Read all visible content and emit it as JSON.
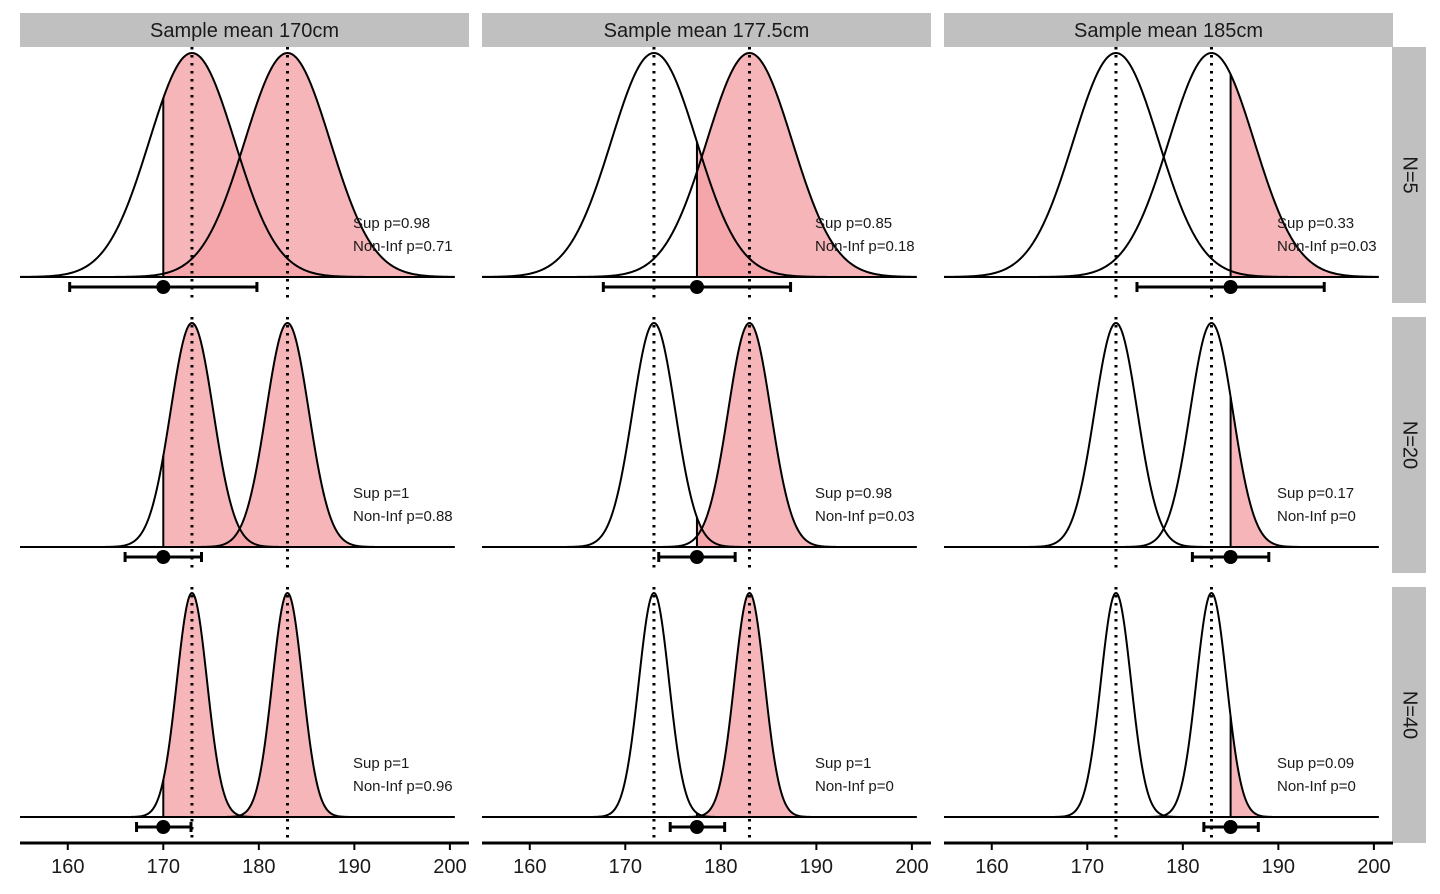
{
  "chart_data": {
    "type": "area",
    "x_axis": {
      "range": [
        155,
        202
      ],
      "ticks": [
        160,
        170,
        180,
        190,
        200
      ],
      "tick_labels": [
        "160",
        "170",
        "180",
        "190",
        "200"
      ]
    },
    "reference_lines": [
      173,
      183
    ],
    "null_means": [
      173,
      183
    ],
    "sd": 10,
    "columns": [
      {
        "label": "Sample mean 170cm",
        "sample_mean": 170
      },
      {
        "label": "Sample mean 177.5cm",
        "sample_mean": 177.5
      },
      {
        "label": "Sample mean 185cm",
        "sample_mean": 185
      }
    ],
    "rows": [
      {
        "label": "N=5",
        "n": 5
      },
      {
        "label": "N=20",
        "n": 20
      },
      {
        "label": "N=40",
        "n": 40
      }
    ],
    "panels": [
      {
        "row": 0,
        "col": 0,
        "ci": [
          160.2,
          179.8
        ],
        "sup_text": "Sup p=0.98",
        "noninf_text": "Non-Inf p=0.71"
      },
      {
        "row": 0,
        "col": 1,
        "ci": [
          167.7,
          187.3
        ],
        "sup_text": "Sup p=0.85",
        "noninf_text": "Non-Inf p=0.18"
      },
      {
        "row": 0,
        "col": 2,
        "ci": [
          175.2,
          194.8
        ],
        "sup_text": "Sup p=0.33",
        "noninf_text": "Non-Inf p=0.03"
      },
      {
        "row": 1,
        "col": 0,
        "ci": [
          166.0,
          174.0
        ],
        "sup_text": "Sup p=1",
        "noninf_text": "Non-Inf p=0.88"
      },
      {
        "row": 1,
        "col": 1,
        "ci": [
          173.5,
          181.5
        ],
        "sup_text": "Sup p=0.98",
        "noninf_text": "Non-Inf p=0.03"
      },
      {
        "row": 1,
        "col": 2,
        "ci": [
          181.0,
          189.0
        ],
        "sup_text": "Sup p=0.17",
        "noninf_text": "Non-Inf p=0"
      },
      {
        "row": 2,
        "col": 0,
        "ci": [
          167.2,
          172.9
        ],
        "sup_text": "Sup p=1",
        "noninf_text": "Non-Inf p=0.96"
      },
      {
        "row": 2,
        "col": 1,
        "ci": [
          174.7,
          180.4
        ],
        "sup_text": "Sup p=1",
        "noninf_text": "Non-Inf p=0"
      },
      {
        "row": 2,
        "col": 2,
        "ci": [
          182.2,
          187.9
        ],
        "sup_text": "Sup p=0.09",
        "noninf_text": "Non-Inf p=0"
      }
    ],
    "colors": {
      "fill": "#f4a3a8",
      "line": "#000000",
      "strip": "#c0c0c0",
      "background": "#ffffff"
    }
  }
}
